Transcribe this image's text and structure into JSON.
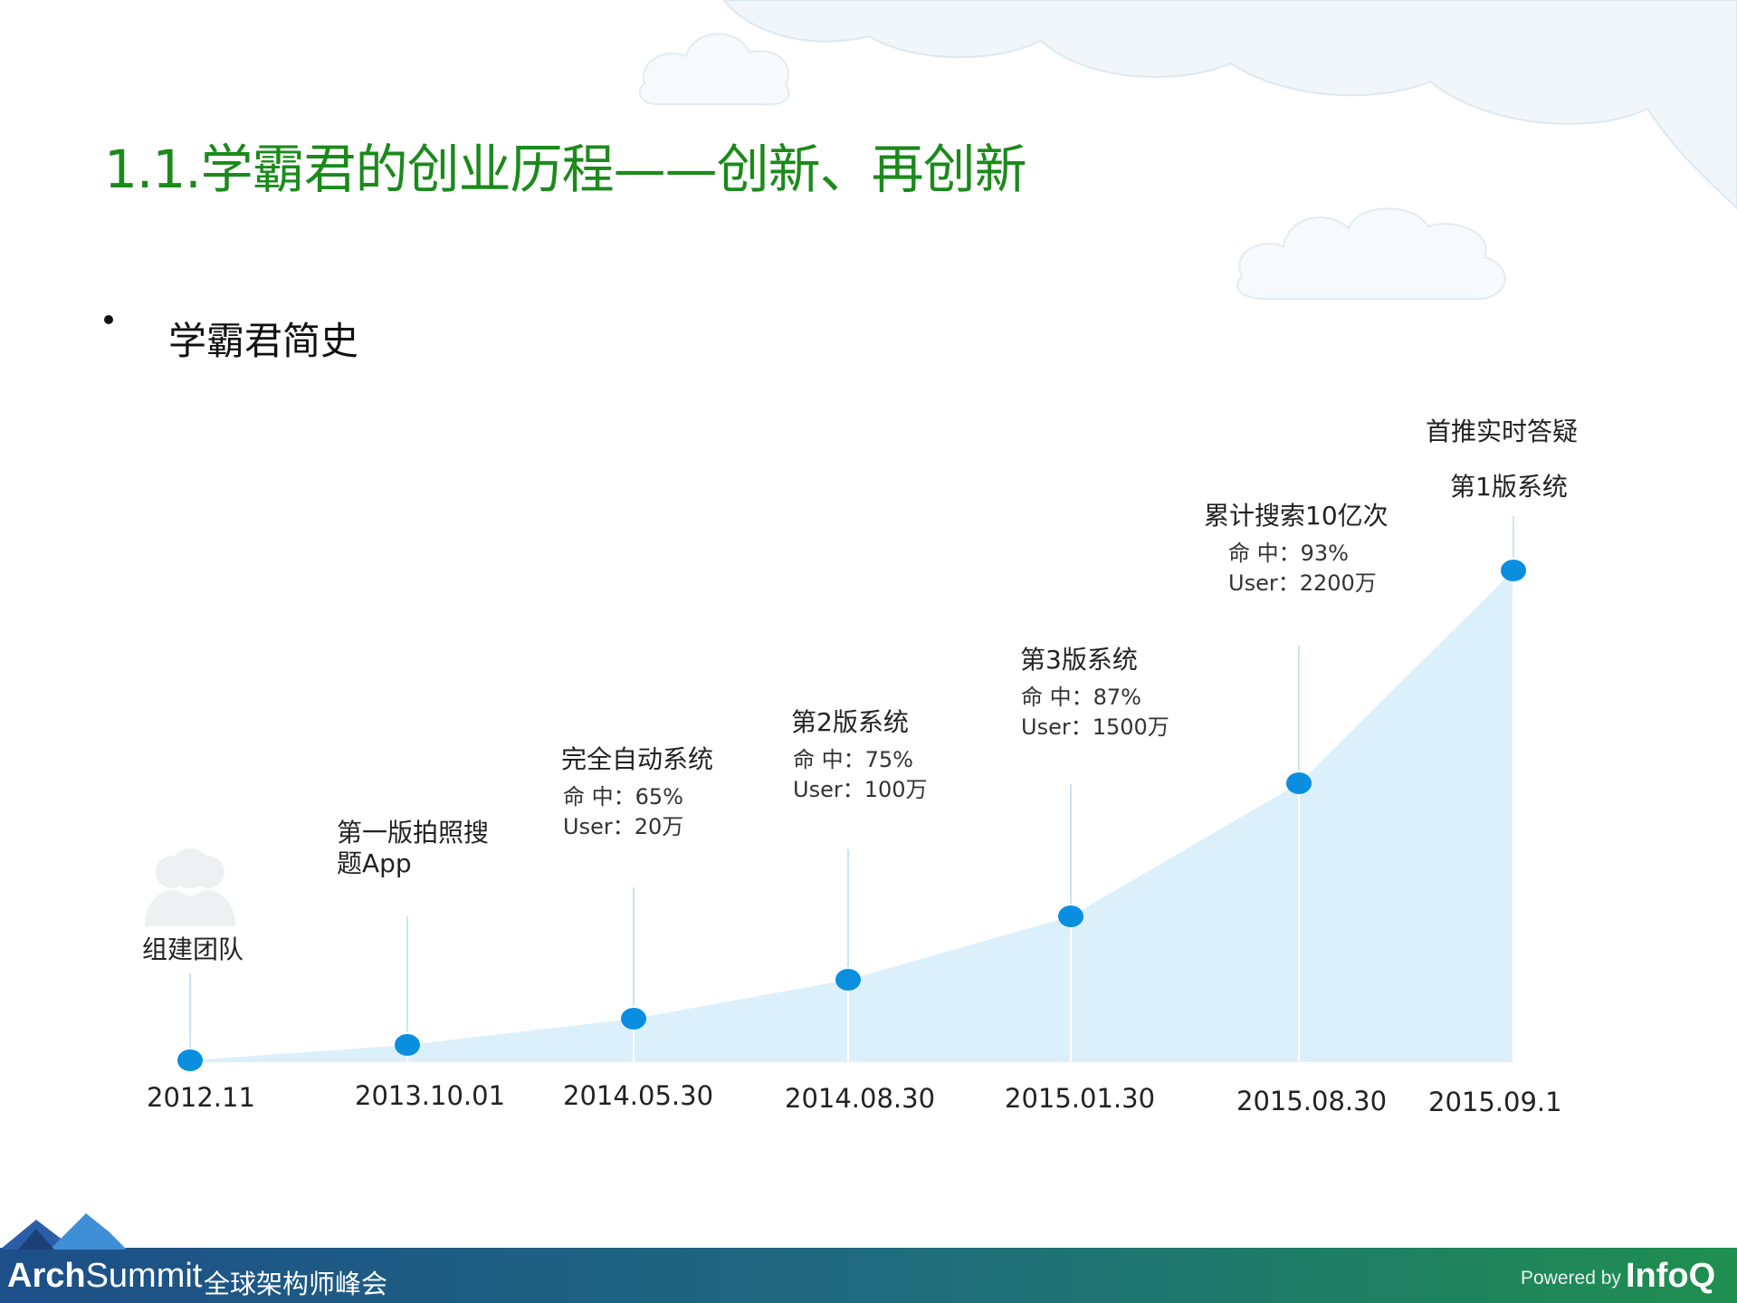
{
  "slide": {
    "title": "1.1.学霸君的创业历程——创新、再创新",
    "bullet": "学霸君简史"
  },
  "timeline": [
    {
      "date": "2012.11",
      "label": "组建团队",
      "label2": "",
      "details": []
    },
    {
      "date": "2013.10.01",
      "label": "第一版拍照搜",
      "label2": "题App",
      "details": []
    },
    {
      "date": "2014.05.30",
      "label": "完全自动系统",
      "label2": "",
      "details": [
        "命 中：65%",
        "User：20万"
      ]
    },
    {
      "date": "2014.08.30",
      "label": "第2版系统",
      "label2": "",
      "details": [
        "命 中：75%",
        "User：100万"
      ]
    },
    {
      "date": "2015.01.30",
      "label": "第3版系统",
      "label2": "",
      "details": [
        "命 中：87%",
        "User：1500万"
      ]
    },
    {
      "date": "2015.08.30",
      "label": "累计搜索10亿次",
      "label2": "",
      "details": [
        "命 中：93%",
        "User：2200万"
      ]
    },
    {
      "date": "2015.09.1",
      "label": "首推实时答疑",
      "label2": "第1版系统",
      "details": []
    }
  ],
  "footer": {
    "brand_bold": "Arch",
    "brand_light": "Summit",
    "brand_sub": "全球架构师峰会",
    "powered_by": "Powered by",
    "infoq": "InfoQ"
  },
  "colors": {
    "title": "#1b8a1b",
    "dot": "#0a8fe0",
    "area": "#dcf0fb",
    "footer_start": "#1d4f88",
    "footer_end": "#1f8f4f"
  },
  "icons": [
    "cloud-icon",
    "team-icon",
    "mountain-logo-icon"
  ]
}
